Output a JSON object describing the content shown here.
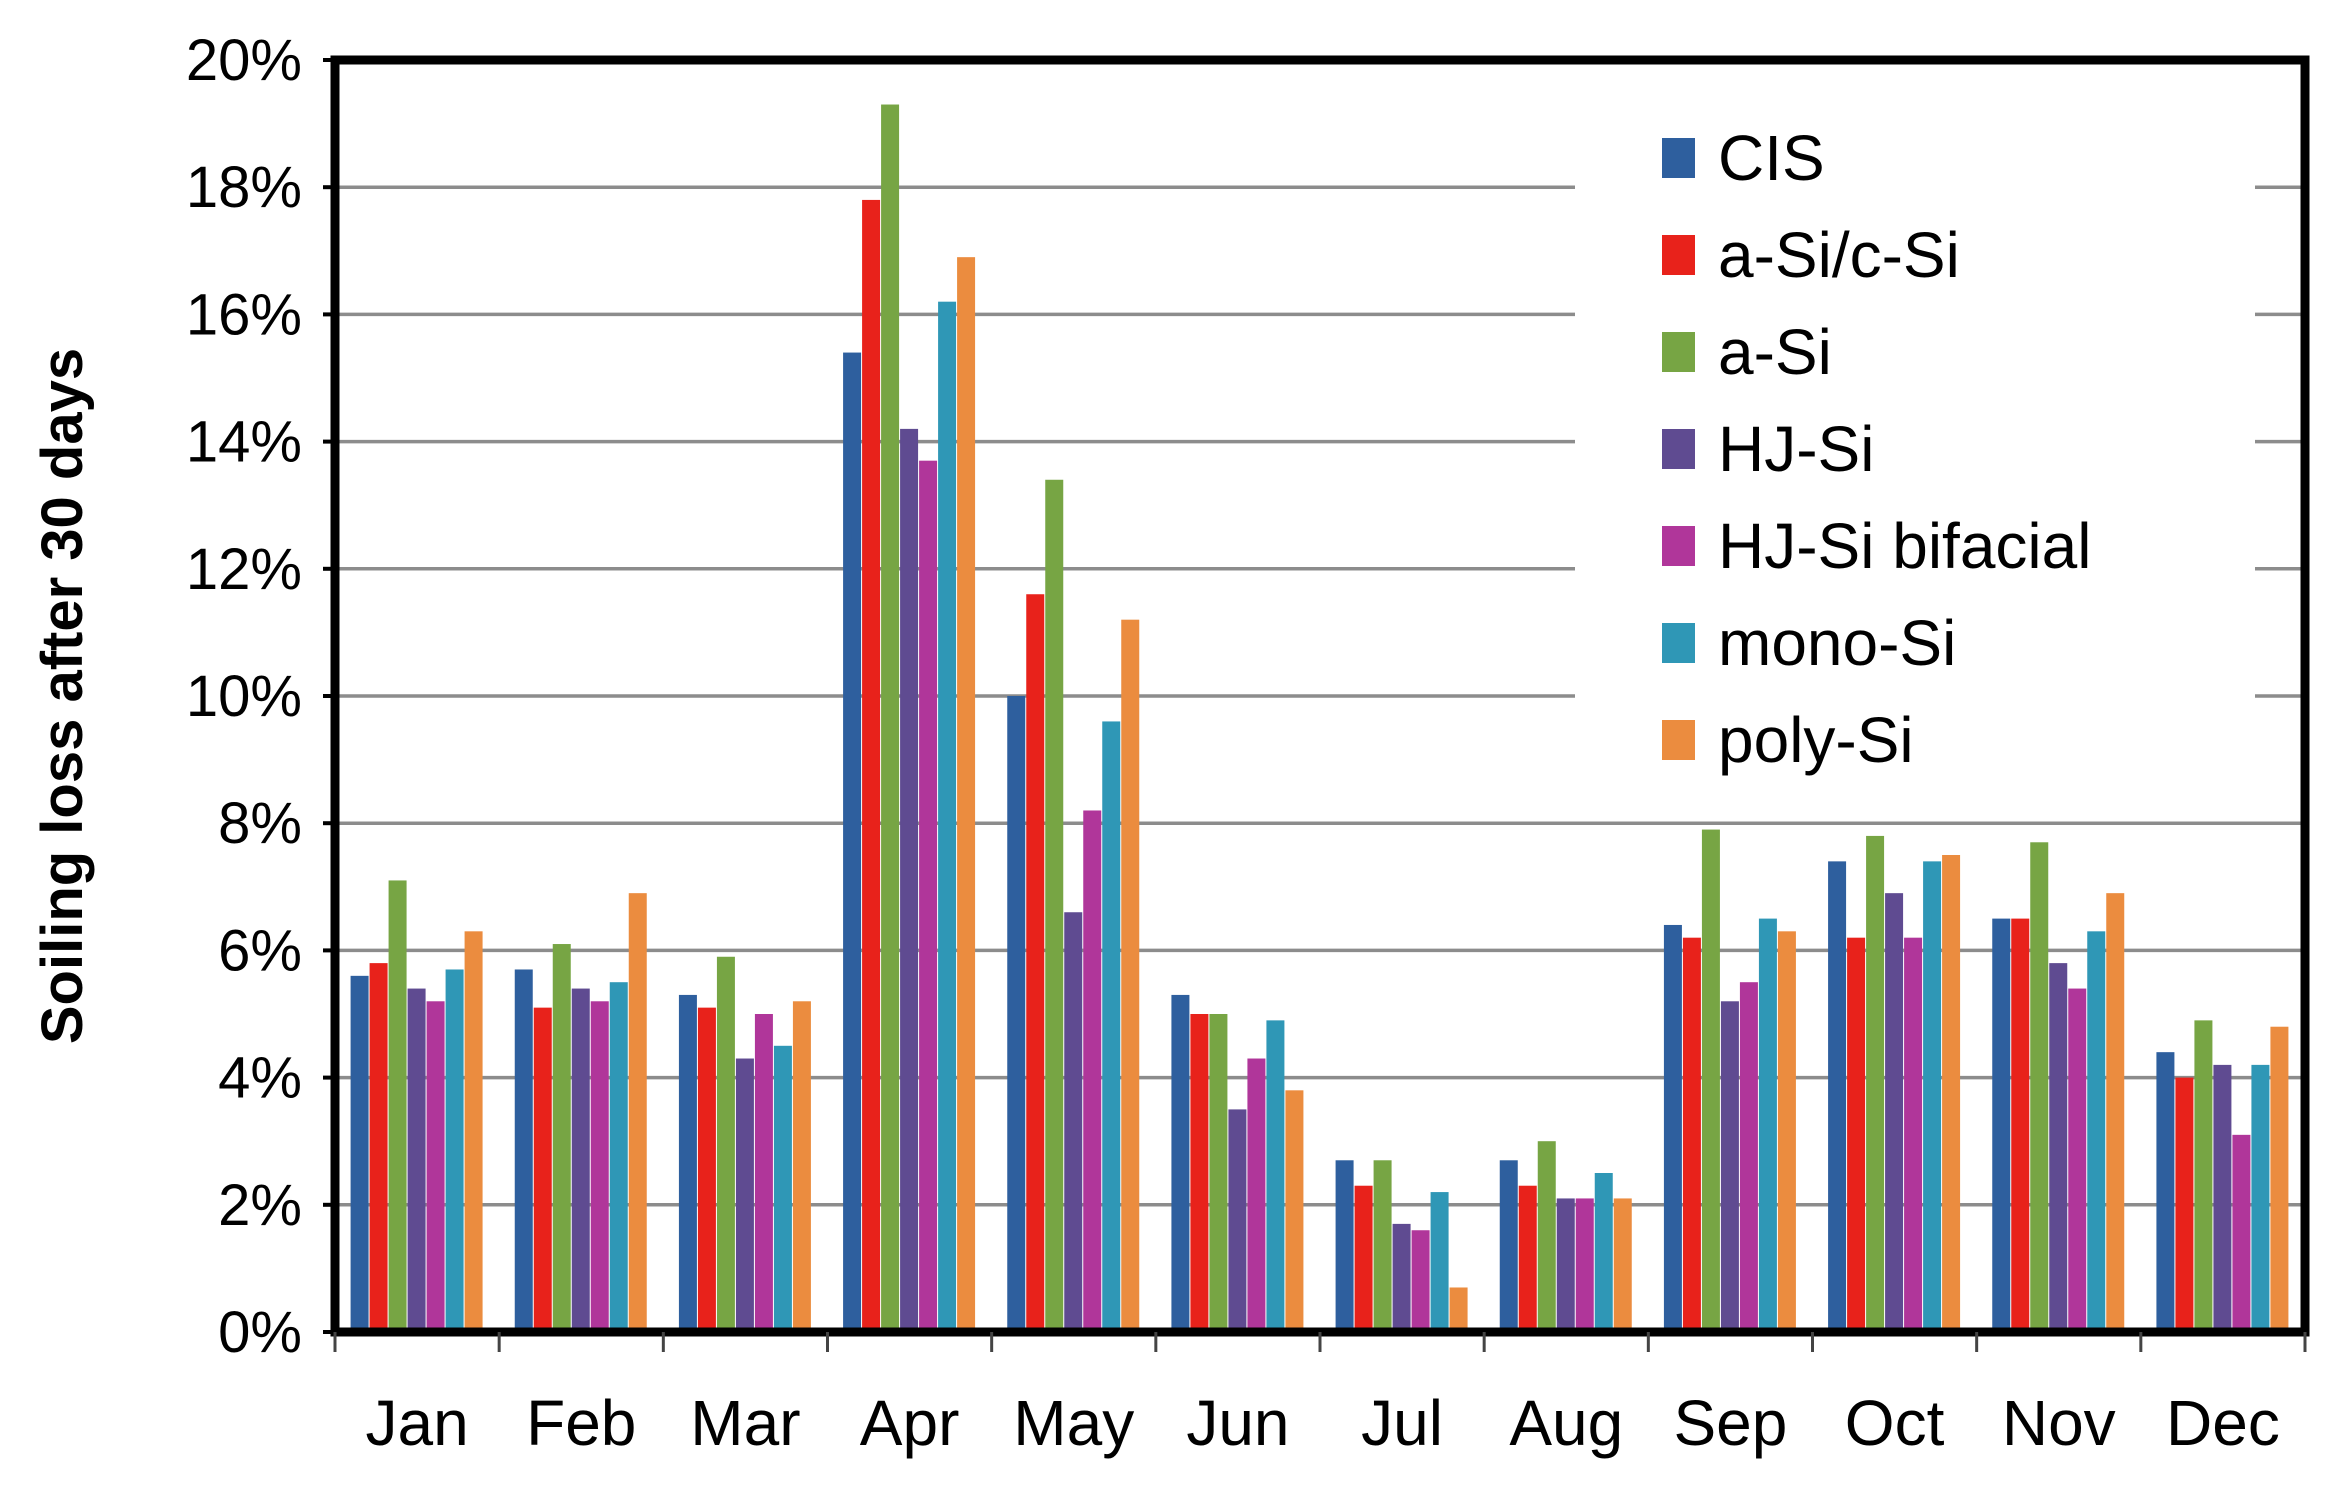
{
  "chart_data": {
    "type": "bar",
    "title": "",
    "xlabel": "",
    "ylabel": "Soiling loss after 30 days",
    "ylim": [
      0,
      20
    ],
    "y_tick_labels": [
      "0%",
      "2%",
      "4%",
      "6%",
      "8%",
      "10%",
      "12%",
      "14%",
      "16%",
      "18%",
      "20%"
    ],
    "grid": "horizontal",
    "legend_position": "top-right",
    "categories": [
      "Jan",
      "Feb",
      "Mar",
      "Apr",
      "May",
      "Jun",
      "Jul",
      "Aug",
      "Sep",
      "Oct",
      "Nov",
      "Dec"
    ],
    "series": [
      {
        "name": "CIS",
        "color": "#2e5f9e",
        "values": [
          5.6,
          5.7,
          5.3,
          15.4,
          10.0,
          5.3,
          2.7,
          2.7,
          6.4,
          7.4,
          6.5,
          4.4
        ]
      },
      {
        "name": "a-Si/c-Si",
        "color": "#e8221b",
        "values": [
          5.8,
          5.1,
          5.1,
          17.8,
          11.6,
          5.0,
          2.3,
          2.3,
          6.2,
          6.2,
          6.5,
          4.0
        ]
      },
      {
        "name": "a-Si",
        "color": "#77a544",
        "values": [
          7.1,
          6.1,
          5.9,
          19.3,
          13.4,
          5.0,
          2.7,
          3.0,
          7.9,
          7.8,
          7.7,
          4.9
        ]
      },
      {
        "name": "HJ-Si",
        "color": "#5f4b91",
        "values": [
          5.4,
          5.4,
          4.3,
          14.2,
          6.6,
          3.5,
          1.7,
          2.1,
          5.2,
          6.9,
          5.8,
          4.2
        ]
      },
      {
        "name": "HJ-Si bifacial",
        "color": "#b0369a",
        "values": [
          5.2,
          5.2,
          5.0,
          13.7,
          8.2,
          4.3,
          1.6,
          2.1,
          5.5,
          6.2,
          5.4,
          3.1
        ]
      },
      {
        "name": "mono-Si",
        "color": "#2f97b6",
        "values": [
          5.7,
          5.5,
          4.5,
          16.2,
          9.6,
          4.9,
          2.2,
          2.5,
          6.5,
          7.4,
          6.3,
          4.2
        ]
      },
      {
        "name": "poly-Si",
        "color": "#eb8c3f",
        "values": [
          6.3,
          6.9,
          5.2,
          16.9,
          11.2,
          3.8,
          0.7,
          2.1,
          6.3,
          7.5,
          6.9,
          4.8
        ]
      }
    ]
  }
}
